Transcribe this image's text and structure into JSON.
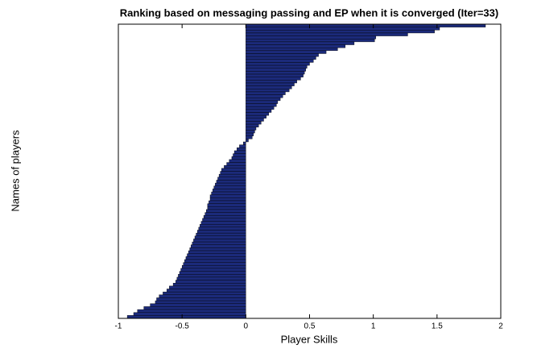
{
  "chart_data": {
    "type": "barh",
    "title": "Ranking based on messaging passing and EP when it is converged (Iter=33)",
    "xlabel": "Player Skills",
    "ylabel": "Names of players",
    "color": "#1b2a7a",
    "edgecolor": "#000000",
    "xlim": [
      -1,
      2
    ],
    "xticks": [
      -1,
      -0.5,
      0,
      0.5,
      1,
      1.5,
      2
    ],
    "categories": [
      null,
      null,
      null,
      null,
      null,
      null,
      null,
      null,
      null,
      null,
      null,
      null,
      null,
      null,
      null,
      null,
      null,
      null,
      null,
      null,
      null,
      null,
      null,
      null,
      null,
      null,
      null,
      null,
      null,
      null,
      null,
      null,
      null,
      null,
      null,
      null,
      null,
      null,
      null,
      null,
      null,
      null,
      null,
      null,
      null,
      null,
      null,
      null,
      null,
      null,
      null,
      null,
      null,
      null,
      null,
      null,
      null,
      null,
      null,
      null,
      null,
      null,
      null,
      null,
      null,
      null,
      null,
      null,
      null,
      null,
      null,
      null,
      null,
      null,
      null,
      null,
      null,
      null,
      null,
      null,
      null,
      null,
      null,
      null,
      null,
      null,
      null,
      null,
      null,
      null,
      null,
      null,
      null,
      null,
      null,
      null,
      null,
      null,
      null,
      null
    ],
    "values": [
      1.88,
      1.52,
      1.48,
      1.27,
      1.02,
      1.01,
      0.85,
      0.78,
      0.72,
      0.63,
      0.57,
      0.55,
      0.53,
      0.5,
      0.48,
      0.47,
      0.46,
      0.45,
      0.43,
      0.4,
      0.38,
      0.36,
      0.34,
      0.31,
      0.29,
      0.27,
      0.25,
      0.24,
      0.22,
      0.2,
      0.18,
      0.16,
      0.14,
      0.12,
      0.1,
      0.08,
      0.07,
      0.06,
      0.05,
      0.02,
      -0.02,
      -0.05,
      -0.07,
      -0.09,
      -0.1,
      -0.11,
      -0.13,
      -0.15,
      -0.17,
      -0.19,
      -0.2,
      -0.21,
      -0.22,
      -0.23,
      -0.24,
      -0.25,
      -0.26,
      -0.27,
      -0.28,
      -0.28,
      -0.29,
      -0.3,
      -0.3,
      -0.31,
      -0.32,
      -0.33,
      -0.34,
      -0.35,
      -0.36,
      -0.37,
      -0.38,
      -0.39,
      -0.4,
      -0.41,
      -0.42,
      -0.43,
      -0.44,
      -0.45,
      -0.46,
      -0.47,
      -0.48,
      -0.49,
      -0.5,
      -0.51,
      -0.52,
      -0.53,
      -0.54,
      -0.55,
      -0.57,
      -0.6,
      -0.62,
      -0.65,
      -0.68,
      -0.7,
      -0.71,
      -0.75,
      -0.8,
      -0.85,
      -0.88,
      -0.93
    ]
  }
}
